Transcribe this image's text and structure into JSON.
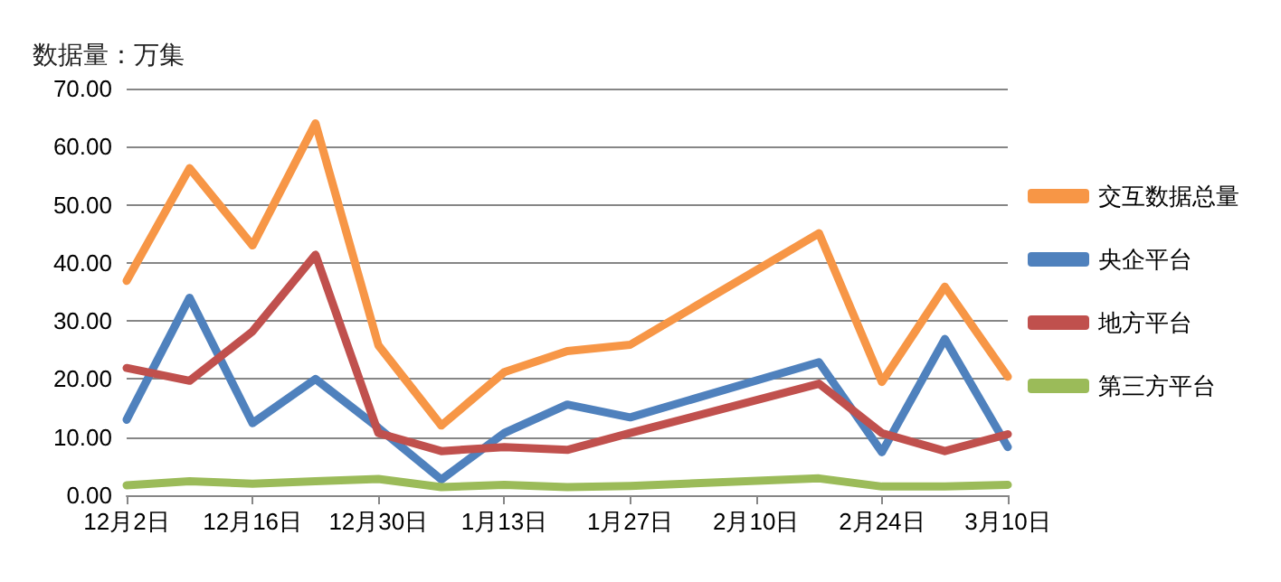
{
  "chart_data": {
    "type": "line",
    "ylabel": "数据量：万集",
    "categories": [
      "12月2日",
      null,
      "12月16日",
      null,
      "12月30日",
      null,
      "1月13日",
      null,
      "1月27日",
      null,
      "2月10日",
      null,
      "2月24日",
      null,
      "3月10日"
    ],
    "series": [
      {
        "name": "交互数据总量",
        "color": "#f79646",
        "values": [
          36.9,
          56.3,
          43,
          64,
          25.8,
          12,
          21.2,
          24.8,
          25.9,
          null,
          null,
          45.1,
          19.5,
          35.9,
          20.4
        ]
      },
      {
        "name": "央企平台",
        "color": "#4f81bd",
        "values": [
          13,
          34,
          12.4,
          20,
          11.6,
          2.7,
          10.7,
          15.6,
          13.4,
          null,
          null,
          22.9,
          7.4,
          26.9,
          8.3
        ]
      },
      {
        "name": "地方平台",
        "color": "#c0504d",
        "values": [
          21.9,
          19.7,
          28.2,
          41.4,
          10.7,
          7.6,
          8.3,
          7.8,
          10.7,
          null,
          null,
          19.2,
          10.7,
          7.6,
          10.5
        ]
      },
      {
        "name": "第三方平台",
        "color": "#9bbb59",
        "values": [
          1.7,
          2.4,
          2,
          2.4,
          2.8,
          1.4,
          1.8,
          1.4,
          1.6,
          null,
          null,
          2.9,
          1.5,
          1.5,
          1.8
        ]
      }
    ],
    "ylim": [
      0,
      70
    ],
    "yticks": [
      {
        "value": 0,
        "label": "0.00"
      },
      {
        "value": 10,
        "label": "10.00"
      },
      {
        "value": 20,
        "label": "20.00"
      },
      {
        "value": 30,
        "label": "30.00"
      },
      {
        "value": 40,
        "label": "40.00"
      },
      {
        "value": 50,
        "label": "50.00"
      },
      {
        "value": 60,
        "label": "60.00"
      },
      {
        "value": 70,
        "label": "70.00"
      }
    ],
    "grid": "y",
    "legend": "right",
    "marker": "none",
    "line_style": "solid"
  }
}
